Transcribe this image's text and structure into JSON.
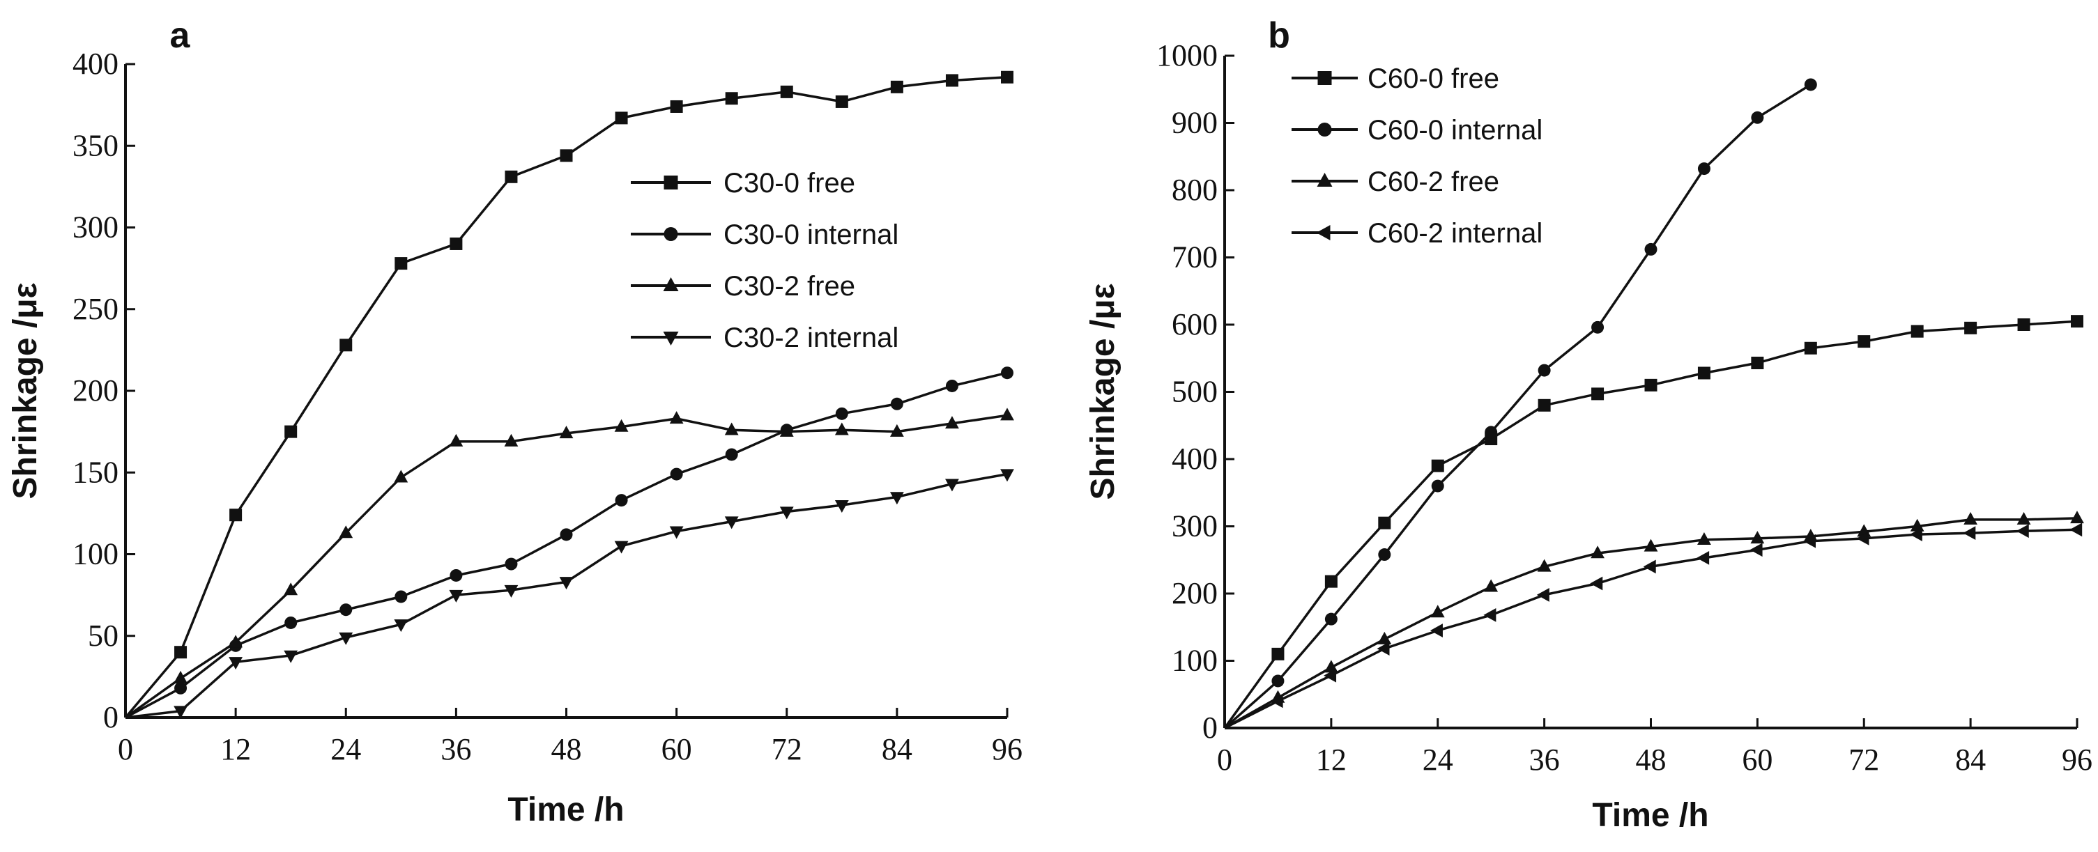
{
  "chart_data": [
    {
      "type": "line",
      "panel": "a",
      "xlabel": "Time /h",
      "ylabel": "Shrinkage /με",
      "xlim": [
        0,
        96
      ],
      "ylim": [
        0,
        400
      ],
      "xticks": [
        0,
        12,
        24,
        36,
        48,
        60,
        72,
        84,
        96
      ],
      "yticks": [
        0,
        50,
        100,
        150,
        200,
        250,
        300,
        350,
        400
      ],
      "legend_position": "upper-right-inner",
      "series": [
        {
          "name": "C30-0 free",
          "marker": "square",
          "x": [
            0,
            6,
            12,
            18,
            24,
            30,
            36,
            42,
            48,
            54,
            60,
            66,
            72,
            78,
            84,
            90,
            96
          ],
          "y": [
            0,
            40,
            124,
            175,
            228,
            278,
            290,
            331,
            344,
            367,
            374,
            379,
            383,
            377,
            386,
            390,
            392
          ]
        },
        {
          "name": "C30-0 internal",
          "marker": "circle",
          "x": [
            0,
            6,
            12,
            18,
            24,
            30,
            36,
            42,
            48,
            54,
            60,
            66,
            72,
            78,
            84,
            90,
            96
          ],
          "y": [
            0,
            18,
            44,
            58,
            66,
            74,
            87,
            94,
            112,
            133,
            149,
            161,
            176,
            186,
            192,
            203,
            211
          ]
        },
        {
          "name": "C30-2 free",
          "marker": "triangle-up",
          "x": [
            0,
            6,
            12,
            18,
            24,
            30,
            36,
            42,
            48,
            54,
            60,
            66,
            72,
            78,
            84,
            90,
            96
          ],
          "y": [
            0,
            24,
            46,
            78,
            113,
            147,
            169,
            169,
            174,
            178,
            183,
            176,
            175,
            176,
            175,
            180,
            185
          ]
        },
        {
          "name": "C30-2 internal",
          "marker": "triangle-down",
          "x": [
            0,
            6,
            12,
            18,
            24,
            30,
            36,
            42,
            48,
            54,
            60,
            66,
            72,
            78,
            84,
            90,
            96
          ],
          "y": [
            0,
            4,
            34,
            38,
            49,
            57,
            75,
            78,
            83,
            105,
            114,
            120,
            126,
            130,
            135,
            143,
            149
          ]
        }
      ]
    },
    {
      "type": "line",
      "panel": "b",
      "xlabel": "Time /h",
      "ylabel": "Shrinkage /με",
      "xlim": [
        0,
        96
      ],
      "ylim": [
        0,
        1000
      ],
      "xticks": [
        0,
        12,
        24,
        36,
        48,
        60,
        72,
        84,
        96
      ],
      "yticks": [
        0,
        100,
        200,
        300,
        400,
        500,
        600,
        700,
        800,
        900,
        1000
      ],
      "legend_position": "upper-left-inner",
      "series": [
        {
          "name": "C60-0 free",
          "marker": "square",
          "x": [
            0,
            6,
            12,
            18,
            24,
            30,
            36,
            42,
            48,
            54,
            60,
            66,
            72,
            78,
            84,
            90,
            96
          ],
          "y": [
            0,
            110,
            218,
            305,
            390,
            430,
            480,
            497,
            510,
            528,
            543,
            565,
            575,
            590,
            595,
            600,
            605
          ]
        },
        {
          "name": "C60-0 internal",
          "marker": "circle",
          "x": [
            0,
            6,
            12,
            18,
            24,
            30,
            36,
            42,
            48,
            54,
            60,
            66
          ],
          "y": [
            0,
            70,
            162,
            258,
            360,
            440,
            532,
            596,
            712,
            832,
            908,
            957
          ]
        },
        {
          "name": "C60-2 free",
          "marker": "triangle-up",
          "x": [
            0,
            6,
            12,
            18,
            24,
            30,
            36,
            42,
            48,
            54,
            60,
            66,
            72,
            78,
            84,
            90,
            96
          ],
          "y": [
            0,
            45,
            90,
            132,
            172,
            210,
            240,
            260,
            270,
            280,
            282,
            285,
            292,
            300,
            310,
            310,
            312
          ]
        },
        {
          "name": "C60-2 internal",
          "marker": "triangle-left",
          "x": [
            0,
            6,
            12,
            18,
            24,
            30,
            36,
            42,
            48,
            54,
            60,
            66,
            72,
            78,
            84,
            90,
            96
          ],
          "y": [
            0,
            40,
            78,
            118,
            145,
            168,
            198,
            215,
            240,
            253,
            265,
            278,
            282,
            288,
            290,
            293,
            295
          ]
        }
      ]
    }
  ]
}
